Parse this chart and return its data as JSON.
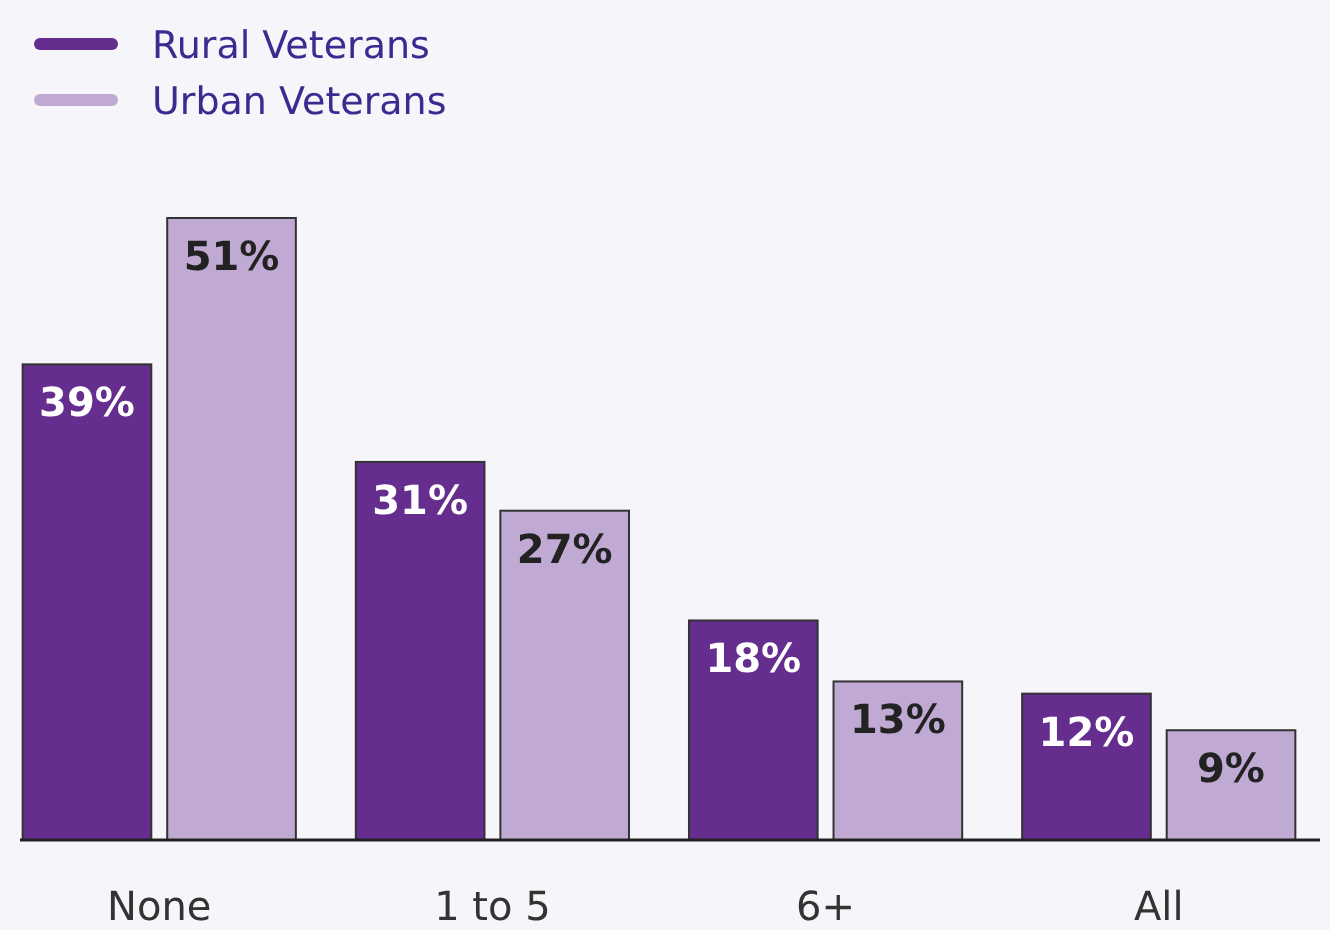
{
  "chart_data": {
    "type": "bar",
    "categories": [
      "None",
      "1 to 5",
      "6+",
      "All"
    ],
    "series": [
      {
        "name": "Rural Veterans",
        "color": "#652d8e",
        "values": [
          39,
          31,
          18,
          12
        ],
        "value_labels": [
          "39%",
          "31%",
          "18%",
          "12%"
        ]
      },
      {
        "name": "Urban Veterans",
        "color": "#c0a9d3",
        "values": [
          51,
          27,
          13,
          9
        ],
        "value_labels": [
          "51%",
          "27%",
          "13%",
          "9%"
        ]
      }
    ],
    "legend": "top left"
  }
}
